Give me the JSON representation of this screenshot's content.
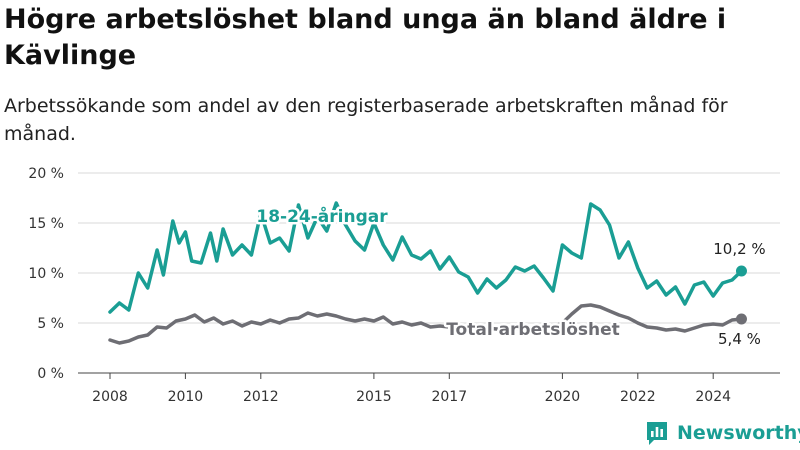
{
  "title": "Högre arbetslöshet bland unga än bland äldre i Kävlinge",
  "subtitle": "Arbetssökande som andel av den registerbaserade arbetskraften månad för månad.",
  "brand": {
    "name": "Newsworthy",
    "icon": "bar-chart-logo-icon"
  },
  "colors": {
    "youth": "#1a9e94",
    "total": "#6e6e74",
    "grid": "#d9d9d9"
  },
  "chart_data": {
    "type": "line",
    "title": "Högre arbetslöshet bland unga än bland äldre i Kävlinge",
    "subtitle": "Arbetssökande som andel av den registerbaserade arbetskraften månad för månad.",
    "xlabel": "",
    "ylabel": "",
    "x_ticks": [
      "2008",
      "2010",
      "2012",
      "2015",
      "2017",
      "2020",
      "2022",
      "2024"
    ],
    "y_ticks": [
      "0 %",
      "5 %",
      "10 %",
      "15 %",
      "20 %"
    ],
    "ylim": [
      0,
      20
    ],
    "grid": true,
    "legend": "direct labels on lines",
    "series": [
      {
        "name": "18-24-åringar",
        "color": "#1a9e94",
        "end_label": "10,2 %",
        "points": [
          [
            "2008-01",
            6.1
          ],
          [
            "2008-04",
            7.0
          ],
          [
            "2008-07",
            6.3
          ],
          [
            "2008-10",
            10.0
          ],
          [
            "2009-01",
            8.5
          ],
          [
            "2009-04",
            12.3
          ],
          [
            "2009-06",
            9.8
          ],
          [
            "2009-09",
            15.2
          ],
          [
            "2009-11",
            13.0
          ],
          [
            "2010-01",
            14.1
          ],
          [
            "2010-03",
            11.2
          ],
          [
            "2010-06",
            11.0
          ],
          [
            "2010-09",
            14.0
          ],
          [
            "2010-11",
            11.2
          ],
          [
            "2011-01",
            14.4
          ],
          [
            "2011-04",
            11.8
          ],
          [
            "2011-07",
            12.8
          ],
          [
            "2011-10",
            11.8
          ],
          [
            "2012-01",
            16.0
          ],
          [
            "2012-04",
            13.0
          ],
          [
            "2012-07",
            13.5
          ],
          [
            "2012-10",
            12.2
          ],
          [
            "2013-01",
            16.8
          ],
          [
            "2013-04",
            13.5
          ],
          [
            "2013-07",
            15.6
          ],
          [
            "2013-10",
            14.2
          ],
          [
            "2014-01",
            17.0
          ],
          [
            "2014-04",
            14.8
          ],
          [
            "2014-07",
            13.2
          ],
          [
            "2014-10",
            12.3
          ],
          [
            "2015-01",
            15.0
          ],
          [
            "2015-04",
            12.8
          ],
          [
            "2015-07",
            11.3
          ],
          [
            "2015-10",
            13.6
          ],
          [
            "2016-01",
            11.8
          ],
          [
            "2016-04",
            11.4
          ],
          [
            "2016-07",
            12.2
          ],
          [
            "2016-10",
            10.4
          ],
          [
            "2017-01",
            11.6
          ],
          [
            "2017-04",
            10.1
          ],
          [
            "2017-07",
            9.6
          ],
          [
            "2017-10",
            8.0
          ],
          [
            "2018-01",
            9.4
          ],
          [
            "2018-04",
            8.5
          ],
          [
            "2018-07",
            9.3
          ],
          [
            "2018-10",
            10.6
          ],
          [
            "2019-01",
            10.2
          ],
          [
            "2019-04",
            10.7
          ],
          [
            "2019-07",
            9.5
          ],
          [
            "2019-10",
            8.2
          ],
          [
            "2020-01",
            12.8
          ],
          [
            "2020-04",
            12.0
          ],
          [
            "2020-07",
            11.5
          ],
          [
            "2020-10",
            16.9
          ],
          [
            "2021-01",
            16.3
          ],
          [
            "2021-04",
            14.8
          ],
          [
            "2021-07",
            11.5
          ],
          [
            "2021-10",
            13.1
          ],
          [
            "2022-01",
            10.5
          ],
          [
            "2022-04",
            8.5
          ],
          [
            "2022-07",
            9.2
          ],
          [
            "2022-10",
            7.8
          ],
          [
            "2023-01",
            8.6
          ],
          [
            "2023-04",
            6.9
          ],
          [
            "2023-07",
            8.8
          ],
          [
            "2023-10",
            9.1
          ],
          [
            "2024-01",
            7.7
          ],
          [
            "2024-04",
            9.0
          ],
          [
            "2024-07",
            9.3
          ],
          [
            "2024-10",
            10.2
          ]
        ]
      },
      {
        "name": "Total arbetslöshet",
        "color": "#6e6e74",
        "end_label": "5,4 %",
        "points": [
          [
            "2008-01",
            3.3
          ],
          [
            "2008-04",
            3.0
          ],
          [
            "2008-07",
            3.2
          ],
          [
            "2008-10",
            3.6
          ],
          [
            "2009-01",
            3.8
          ],
          [
            "2009-04",
            4.6
          ],
          [
            "2009-07",
            4.5
          ],
          [
            "2009-10",
            5.2
          ],
          [
            "2010-01",
            5.4
          ],
          [
            "2010-04",
            5.8
          ],
          [
            "2010-07",
            5.1
          ],
          [
            "2010-10",
            5.5
          ],
          [
            "2011-01",
            4.9
          ],
          [
            "2011-04",
            5.2
          ],
          [
            "2011-07",
            4.7
          ],
          [
            "2011-10",
            5.1
          ],
          [
            "2012-01",
            4.9
          ],
          [
            "2012-04",
            5.3
          ],
          [
            "2012-07",
            5.0
          ],
          [
            "2012-10",
            5.4
          ],
          [
            "2013-01",
            5.5
          ],
          [
            "2013-04",
            6.0
          ],
          [
            "2013-07",
            5.7
          ],
          [
            "2013-10",
            5.9
          ],
          [
            "2014-01",
            5.7
          ],
          [
            "2014-04",
            5.4
          ],
          [
            "2014-07",
            5.2
          ],
          [
            "2014-10",
            5.4
          ],
          [
            "2015-01",
            5.2
          ],
          [
            "2015-04",
            5.6
          ],
          [
            "2015-07",
            4.9
          ],
          [
            "2015-10",
            5.1
          ],
          [
            "2016-01",
            4.8
          ],
          [
            "2016-04",
            5.0
          ],
          [
            "2016-07",
            4.6
          ],
          [
            "2016-10",
            4.7
          ],
          [
            "2017-01",
            4.6
          ],
          [
            "2017-04",
            4.5
          ],
          [
            "2017-07",
            4.5
          ],
          [
            "2017-10",
            4.4
          ],
          [
            "2018-01",
            4.5
          ],
          [
            "2018-04",
            4.4
          ],
          [
            "2018-07",
            4.5
          ],
          [
            "2018-10",
            4.4
          ],
          [
            "2019-01",
            4.5
          ],
          [
            "2019-04",
            4.5
          ],
          [
            "2019-07",
            4.6
          ],
          [
            "2019-10",
            4.6
          ],
          [
            "2020-01",
            5.0
          ],
          [
            "2020-04",
            5.9
          ],
          [
            "2020-07",
            6.7
          ],
          [
            "2020-10",
            6.8
          ],
          [
            "2021-01",
            6.6
          ],
          [
            "2021-04",
            6.2
          ],
          [
            "2021-07",
            5.8
          ],
          [
            "2021-10",
            5.5
          ],
          [
            "2022-01",
            5.0
          ],
          [
            "2022-04",
            4.6
          ],
          [
            "2022-07",
            4.5
          ],
          [
            "2022-10",
            4.3
          ],
          [
            "2023-01",
            4.4
          ],
          [
            "2023-04",
            4.2
          ],
          [
            "2023-07",
            4.5
          ],
          [
            "2023-10",
            4.8
          ],
          [
            "2024-01",
            4.9
          ],
          [
            "2024-04",
            4.8
          ],
          [
            "2024-07",
            5.3
          ],
          [
            "2024-10",
            5.4
          ]
        ]
      }
    ]
  }
}
